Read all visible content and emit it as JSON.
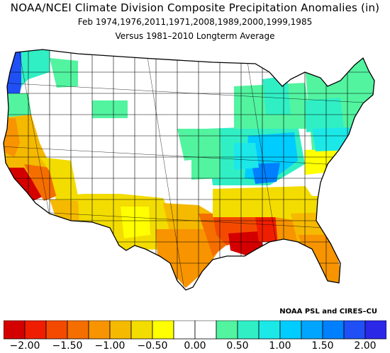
{
  "title": "NOAA/NCEI Climate Division Composite Precipitation Anomalies (in)",
  "subtitle_line1": "Feb   1974,1976,2011,1971,2008,1989,2000,1999,1985",
  "subtitle_line2": "Versus 1981–2010 Longterm Average",
  "credit": "NOAA PSL and CIRES–CU",
  "legend": {
    "colors": [
      "#d40000",
      "#f01e00",
      "#f44a00",
      "#f56e00",
      "#f79400",
      "#f5b900",
      "#f3dc00",
      "#ffff00",
      "#ffffff",
      "#ffffff",
      "#52f4a0",
      "#30efc5",
      "#1ce8e8",
      "#00ccff",
      "#00a5ff",
      "#0080ff",
      "#2050f5",
      "#2c28e8"
    ],
    "tick_labels": [
      "−2.00",
      "−1.50",
      "−1.00",
      "−0.50",
      "0.00",
      "0.50",
      "1.00",
      "1.50",
      "2.00"
    ]
  },
  "map_regions": [
    {
      "name": "pacific-northwest-coast",
      "color": "#2050f5"
    },
    {
      "name": "northern-california",
      "color": "#f5b900"
    },
    {
      "name": "southern-california",
      "color": "#d40000"
    },
    {
      "name": "southwest",
      "color": "#f3dc00"
    },
    {
      "name": "texas-gulf",
      "color": "#f79400"
    },
    {
      "name": "louisiana-coast",
      "color": "#d40000"
    },
    {
      "name": "southeast",
      "color": "#f3dc00"
    },
    {
      "name": "ohio-valley",
      "color": "#00a5ff"
    },
    {
      "name": "great-lakes",
      "color": "#30efc5"
    },
    {
      "name": "northeast",
      "color": "#52f4a0"
    },
    {
      "name": "northern-plains",
      "color": "#ffffff"
    }
  ]
}
